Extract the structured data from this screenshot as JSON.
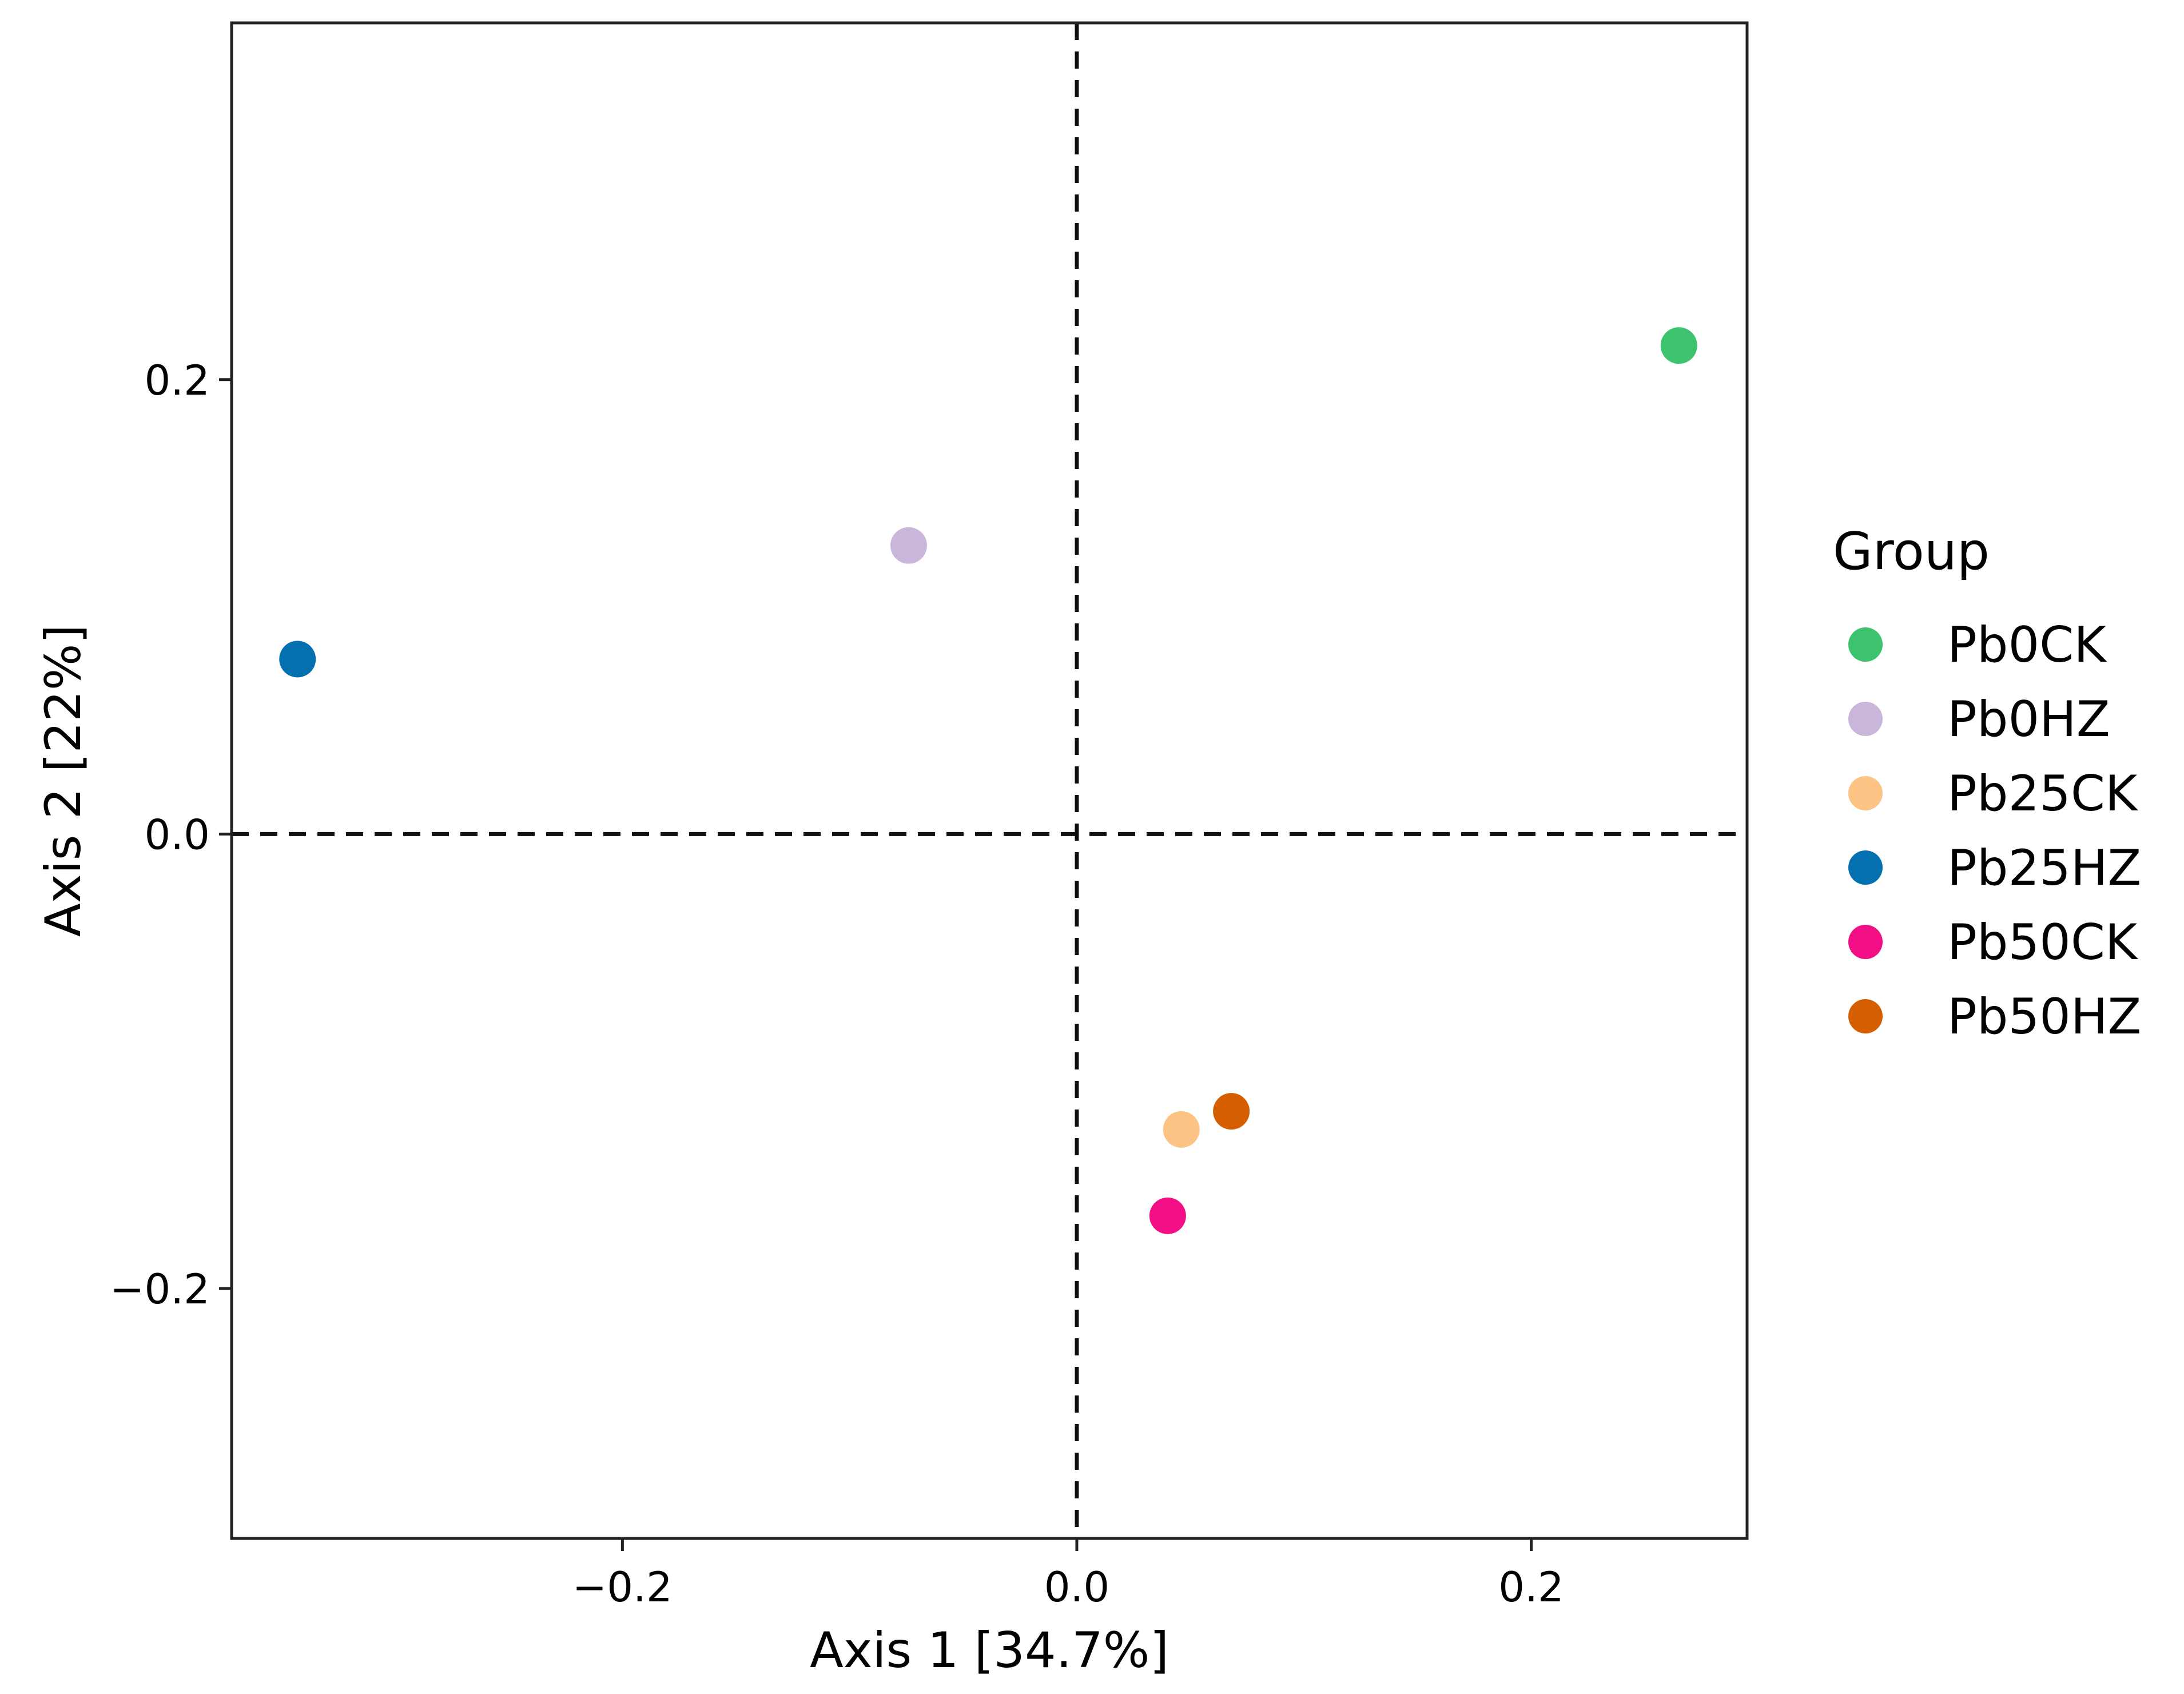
{
  "chart_data": {
    "type": "scatter",
    "title": "",
    "xlabel": "Axis 1 [34.7%]",
    "ylabel": "Axis 2 [22%]",
    "xlim": [
      -0.372,
      0.295
    ],
    "ylim": [
      -0.31,
      0.357
    ],
    "xticks": [
      -0.2,
      0.0,
      0.2
    ],
    "yticks": [
      -0.2,
      0.0,
      0.2
    ],
    "xtick_labels": [
      "−0.2",
      "0.0",
      "0.2"
    ],
    "ytick_labels": [
      "−0.2",
      "0.0",
      "0.2"
    ],
    "reference_lines": {
      "x": 0,
      "y": 0,
      "style": "dashed"
    },
    "grid": false,
    "legend": {
      "title": "Group",
      "position": "right"
    },
    "series": [
      {
        "name": "Pb0CK",
        "color": "#3DC26E",
        "x": 0.265,
        "y": 0.215
      },
      {
        "name": "Pb0HZ",
        "color": "#C9B6DA",
        "x": -0.074,
        "y": 0.127
      },
      {
        "name": "Pb25CK",
        "color": "#FDC385",
        "x": 0.046,
        "y": -0.13
      },
      {
        "name": "Pb25HZ",
        "color": "#0570B0",
        "x": -0.343,
        "y": 0.077
      },
      {
        "name": "Pb50CK",
        "color": "#F20F85",
        "x": 0.04,
        "y": -0.168
      },
      {
        "name": "Pb50HZ",
        "color": "#D55E00",
        "x": 0.068,
        "y": -0.122
      }
    ]
  }
}
